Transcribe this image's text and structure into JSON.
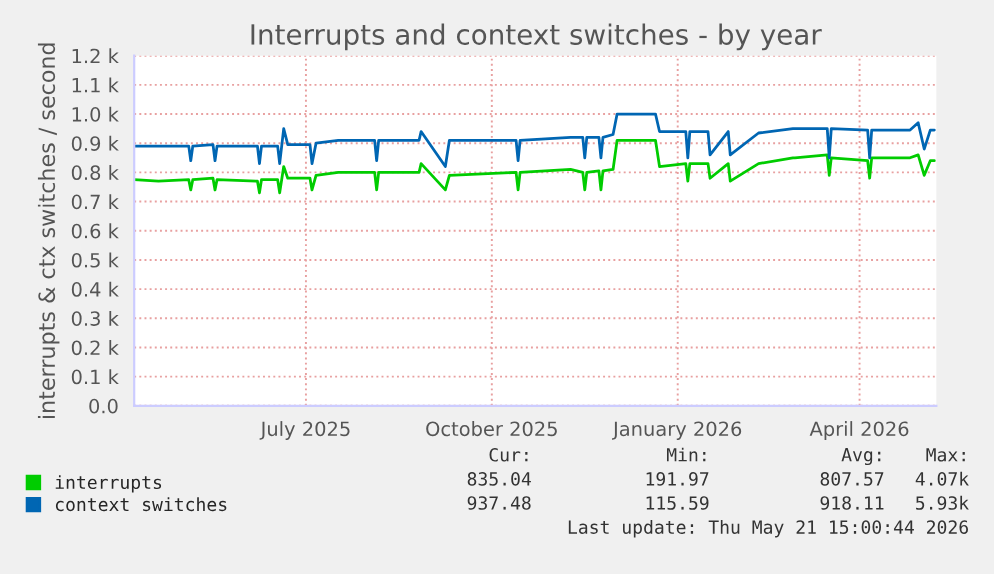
{
  "chart_data": {
    "type": "line",
    "title": "Interrupts and context switches - by year",
    "ylabel": "interrupts & ctx switches / second",
    "x": [
      "2025-04-07",
      "2025-04-19",
      "2025-05-04",
      "2025-05-05",
      "2025-05-06",
      "2025-05-16",
      "2025-05-17",
      "2025-05-18",
      "2025-06-07",
      "2025-06-08",
      "2025-06-09",
      "2025-06-17",
      "2025-06-18",
      "2025-06-20",
      "2025-06-22",
      "2025-07-03",
      "2025-07-04",
      "2025-07-06",
      "2025-07-17",
      "2025-08-04",
      "2025-08-05",
      "2025-08-06",
      "2025-08-26",
      "2025-08-27",
      "2025-09-08",
      "2025-09-10",
      "2025-10-13",
      "2025-10-14",
      "2025-10-15",
      "2025-11-09",
      "2025-11-15",
      "2025-11-16",
      "2025-11-17",
      "2025-11-23",
      "2025-11-24",
      "2025-11-25",
      "2025-11-30",
      "2025-12-02",
      "2025-12-21",
      "2025-12-23",
      "2026-01-05",
      "2026-01-06",
      "2026-01-07",
      "2026-01-16",
      "2026-01-17",
      "2026-01-26",
      "2026-01-27",
      "2026-02-10",
      "2026-02-27",
      "2026-02-28",
      "2026-03-16",
      "2026-03-17",
      "2026-03-18",
      "2026-04-05",
      "2026-04-06",
      "2026-04-07",
      "2026-04-26",
      "2026-04-30",
      "2026-05-03",
      "2026-05-06",
      "2026-05-08"
    ],
    "series": [
      {
        "name": "interrupts",
        "color": "#00cc00",
        "values": [
          775,
          770,
          775,
          740,
          775,
          780,
          740,
          775,
          770,
          730,
          775,
          775,
          730,
          820,
          780,
          780,
          740,
          790,
          800,
          800,
          740,
          800,
          800,
          830,
          740,
          790,
          800,
          740,
          800,
          810,
          800,
          740,
          800,
          805,
          740,
          805,
          810,
          910,
          910,
          820,
          830,
          770,
          830,
          830,
          780,
          830,
          770,
          830,
          850,
          850,
          860,
          790,
          850,
          840,
          780,
          850,
          850,
          860,
          790,
          840,
          840
        ]
      },
      {
        "name": "context switches",
        "color": "#0066b3",
        "values": [
          890,
          890,
          890,
          840,
          890,
          895,
          840,
          890,
          890,
          830,
          890,
          890,
          830,
          950,
          895,
          895,
          830,
          900,
          910,
          910,
          840,
          910,
          910,
          940,
          820,
          910,
          910,
          840,
          910,
          920,
          920,
          850,
          920,
          920,
          850,
          920,
          930,
          1000,
          1000,
          940,
          940,
          850,
          940,
          940,
          860,
          940,
          860,
          935,
          950,
          950,
          950,
          850,
          950,
          945,
          850,
          945,
          945,
          970,
          880,
          945,
          945
        ]
      }
    ],
    "xlim": [
      "2025-04-07",
      "2026-05-09"
    ],
    "xticks": [
      {
        "value": "2025-07-01",
        "label": "July 2025"
      },
      {
        "value": "2025-10-01",
        "label": "October 2025"
      },
      {
        "value": "2026-01-01",
        "label": "January 2026"
      },
      {
        "value": "2026-04-01",
        "label": "April 2026"
      }
    ],
    "ylim": [
      0,
      1200
    ],
    "yticks": [
      {
        "value": 0,
        "label": "0.0"
      },
      {
        "value": 100,
        "label": "0.1 k"
      },
      {
        "value": 200,
        "label": "0.2 k"
      },
      {
        "value": 300,
        "label": "0.3 k"
      },
      {
        "value": 400,
        "label": "0.4 k"
      },
      {
        "value": 500,
        "label": "0.5 k"
      },
      {
        "value": 600,
        "label": "0.6 k"
      },
      {
        "value": 700,
        "label": "0.7 k"
      },
      {
        "value": 800,
        "label": "0.8 k"
      },
      {
        "value": 900,
        "label": "0.9 k"
      },
      {
        "value": 1000,
        "label": "1.0 k"
      },
      {
        "value": 1100,
        "label": "1.1 k"
      },
      {
        "value": 1200,
        "label": "1.2 k"
      }
    ],
    "grid": true,
    "legend": "bottom",
    "line_style": "solid",
    "marker": "none",
    "annotations": [
      "Cur:",
      "Min:",
      "Avg:",
      "Max:",
      "835.04",
      "191.97",
      "807.57",
      "4.07k",
      "937.48",
      "115.59",
      "918.11",
      "5.93k",
      "Last update: Thu May 21 15:00:44 2026"
    ]
  }
}
